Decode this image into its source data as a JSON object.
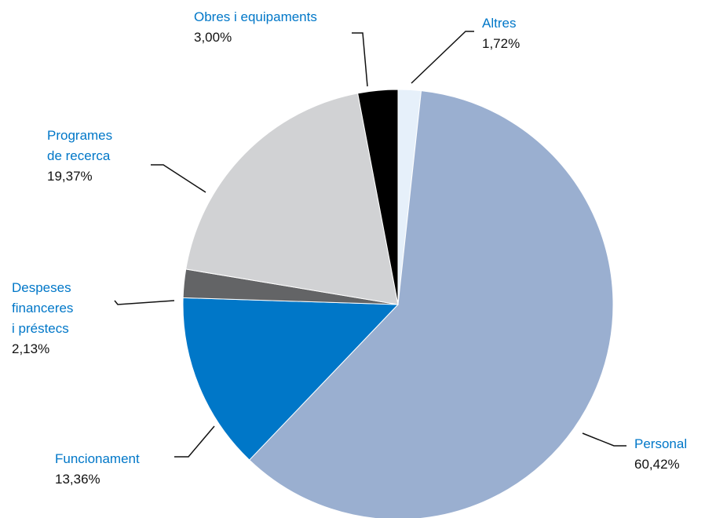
{
  "chart_data": {
    "type": "pie",
    "categories": [
      "Altres",
      "Personal",
      "Funcionament",
      "Despeses financeres i préstecs",
      "Programes de recerca",
      "Obres i equipaments"
    ],
    "values": [
      1.72,
      60.42,
      13.36,
      2.13,
      19.37,
      3.0
    ],
    "value_labels": [
      "1,72%",
      "60,42%",
      "13,36%",
      "2,13%",
      "19,37%",
      "3,00%"
    ],
    "colors": [
      "#e6f0fa",
      "#9aafd0",
      "#0077c8",
      "#636466",
      "#d1d2d4",
      "#000000"
    ]
  }
}
